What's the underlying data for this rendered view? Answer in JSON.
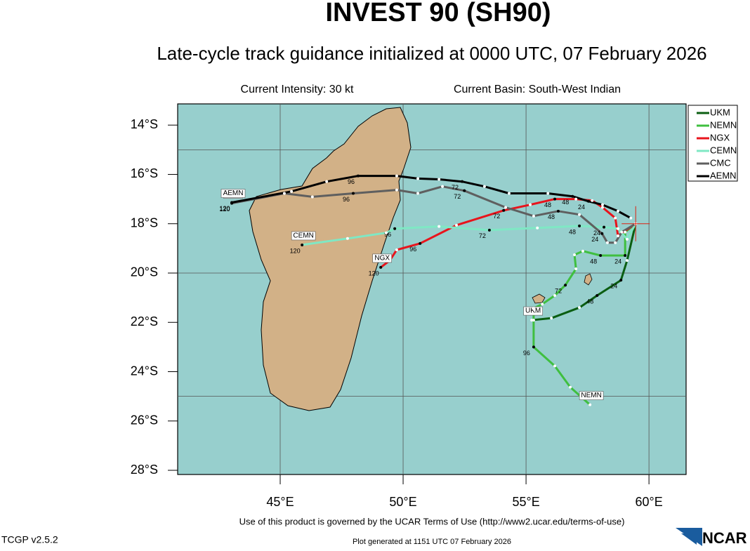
{
  "chart_data": {
    "type": "track-map",
    "title": "INVEST 90 (SH90)",
    "subtitle": "Late-cycle track guidance initialized at 0000 UTC, 07 February 2026",
    "intensity": "Current Intensity: 30 kt",
    "basin": "Current Basin: South-West Indian",
    "xlim": [
      40.83,
      61.51
    ],
    "ylim": [
      -28.17,
      -13.14
    ],
    "xticks": [
      {
        "value": 45,
        "label": "45°E"
      },
      {
        "value": 50,
        "label": "50°E"
      },
      {
        "value": 55,
        "label": "55°E"
      },
      {
        "value": 60,
        "label": "60°E"
      }
    ],
    "yticks": [
      {
        "value": -14,
        "label": "14°S"
      },
      {
        "value": -16,
        "label": "16°S"
      },
      {
        "value": -18,
        "label": "18°S"
      },
      {
        "value": -20,
        "label": "20°S"
      },
      {
        "value": -22,
        "label": "22°S"
      },
      {
        "value": -24,
        "label": "24°S"
      },
      {
        "value": -26,
        "label": "26°S"
      },
      {
        "value": -28,
        "label": "28°S"
      }
    ],
    "ygrid": [
      -15,
      -20,
      -25
    ],
    "current_position": {
      "x": 59.46,
      "y": -18.0
    },
    "series": [
      {
        "name": "UKM",
        "color": "#0b5e12",
        "x": [
          59.46,
          59.11,
          58.86,
          57.89,
          57.17,
          56.03,
          55.23
        ],
        "y": [
          -18.0,
          -19.49,
          -20.29,
          -20.91,
          -21.4,
          -21.83,
          -21.91
        ],
        "hours": [
          null,
          null,
          24,
          48,
          null,
          null,
          null
        ]
      },
      {
        "name": "NEMN",
        "color": "#3fbf3f",
        "x": [
          59.46,
          59.03,
          59.03,
          58.03,
          57.31,
          56.97,
          57.03,
          56.6,
          56.17,
          55.66,
          55.31,
          55.31,
          55.31,
          56.17,
          56.8,
          57.6
        ],
        "y": [
          -18.0,
          -18.34,
          -19.29,
          -19.29,
          -19.11,
          -19.26,
          -19.83,
          -20.49,
          -20.91,
          -21.26,
          -21.43,
          -21.91,
          -23.0,
          -23.77,
          -24.63,
          -25.34
        ],
        "hours": [
          null,
          null,
          24,
          48,
          null,
          null,
          null,
          72,
          null,
          null,
          null,
          null,
          96,
          null,
          null,
          null
        ]
      },
      {
        "name": "NGX",
        "color": "#e8141c",
        "x": [
          59.46,
          58.74,
          58.63,
          58.11,
          57.69,
          57.03,
          56.17,
          55.17,
          54.09,
          52.17,
          50.69,
          49.74,
          49.46,
          49.09
        ],
        "y": [
          -18.0,
          -18.49,
          -17.77,
          -17.34,
          -17.06,
          -17.0,
          -17.0,
          -17.23,
          -17.46,
          -18.06,
          -18.8,
          -19.06,
          -19.49,
          -19.77
        ],
        "hours": [
          null,
          null,
          null,
          null,
          null,
          null,
          48,
          null,
          72,
          null,
          96,
          null,
          null,
          120
        ]
      },
      {
        "name": "CEMN",
        "color": "#7fe8c4",
        "x": [
          59.46,
          59.11,
          58.74,
          58.17,
          57.17,
          55.46,
          53.51,
          51.46,
          49.66,
          49.31,
          47.74,
          45.89
        ],
        "y": [
          -18.0,
          -18.63,
          -18.2,
          -18.14,
          -18.09,
          -18.17,
          -18.26,
          -18.11,
          -18.2,
          -18.37,
          -18.6,
          -18.86
        ],
        "hours": [
          null,
          null,
          null,
          24,
          48,
          null,
          72,
          null,
          96,
          null,
          null,
          120
        ]
      },
      {
        "name": "CMC",
        "color": "#5f5f5f",
        "x": [
          59.46,
          58.89,
          58.63,
          58.31,
          58.09,
          57.17,
          56.31,
          55.31,
          54.17,
          52.49,
          51.6,
          50.6,
          49.74,
          47.97,
          46.31,
          45.17,
          43.03
        ],
        "y": [
          -18.0,
          -18.34,
          -18.77,
          -18.77,
          -18.4,
          -17.63,
          -17.49,
          -17.69,
          -17.34,
          -16.66,
          -16.49,
          -16.77,
          -16.63,
          -16.77,
          -16.91,
          -16.77,
          -17.17
        ],
        "hours": [
          null,
          null,
          null,
          null,
          24,
          null,
          48,
          null,
          null,
          72,
          null,
          null,
          null,
          96,
          null,
          null,
          120
        ]
      },
      {
        "name": "AEMN",
        "color": "#000000",
        "x": [
          59.26,
          58.74,
          58.11,
          57.54,
          56.89,
          55.89,
          54.31,
          53.31,
          52.4,
          51.46,
          50.6,
          49.74,
          48.17,
          46.89,
          45.46,
          43.03
        ],
        "y": [
          -17.77,
          -17.49,
          -17.23,
          -17.09,
          -16.89,
          -16.77,
          -16.77,
          -16.49,
          -16.29,
          -16.2,
          -16.17,
          -16.06,
          -16.06,
          -16.29,
          -16.69,
          -17.14
        ],
        "hours": [
          null,
          null,
          null,
          24,
          48,
          null,
          null,
          null,
          72,
          null,
          null,
          null,
          96,
          null,
          null,
          120
        ]
      }
    ],
    "terms": "Use of this product is governed by the UCAR Terms of Use (http://www2.ucar.edu/terms-of-use)",
    "version": "TCGP v2.5.2",
    "generated": "Plot generated at 1151 UTC   07 February 2026",
    "logo": "NCAR"
  }
}
